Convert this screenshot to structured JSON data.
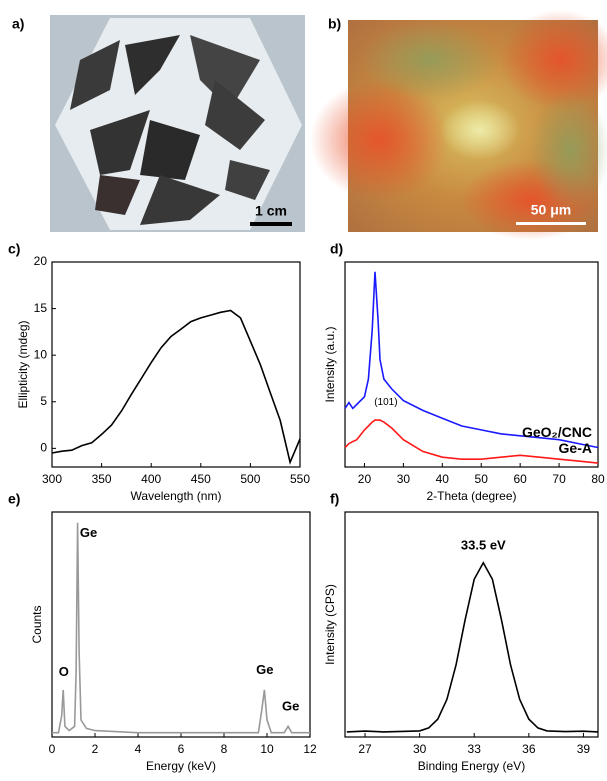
{
  "images": [
    {
      "label": "a)",
      "scale_bar": "1 cm"
    },
    {
      "label": "b)",
      "scale_bar": "50 μm"
    }
  ],
  "chart_data": [
    {
      "type": "line",
      "label": "c)",
      "x_label": "Wavelength (nm)",
      "y_label": "Ellipticity (mdeg)",
      "xlim": [
        300,
        550
      ],
      "xticks": [
        300,
        350,
        400,
        450,
        500,
        550
      ],
      "ylim": [
        -2,
        20
      ],
      "yticks": [
        0,
        5,
        10,
        15,
        20
      ],
      "x": [
        300,
        310,
        320,
        330,
        340,
        350,
        360,
        370,
        380,
        390,
        400,
        410,
        420,
        430,
        440,
        450,
        460,
        470,
        480,
        490,
        500,
        510,
        520,
        530,
        540,
        550
      ],
      "series": [
        {
          "color": "#000000",
          "values": [
            -0.5,
            -0.3,
            -0.2,
            0.3,
            0.6,
            1.5,
            2.5,
            4,
            5.8,
            7.5,
            9.2,
            10.8,
            12,
            12.8,
            13.6,
            14,
            14.3,
            14.6,
            14.8,
            14,
            11.5,
            9,
            6,
            3,
            -1.5,
            1
          ]
        }
      ]
    },
    {
      "type": "line",
      "label": "d)",
      "x_label": "2-Theta (degree)",
      "y_label": "Intensity (a.u.)",
      "xlim": [
        15,
        80
      ],
      "xticks": [
        20,
        30,
        40,
        50,
        60,
        70,
        80
      ],
      "ylim": [
        0,
        105
      ],
      "x": [
        15,
        16,
        17,
        18,
        20,
        21,
        22,
        22.7,
        23.5,
        24,
        25,
        27,
        30,
        35,
        40,
        45,
        50,
        55,
        60,
        65,
        70,
        75,
        80
      ],
      "series": [
        {
          "name": "GeO₂/CNC",
          "color": "#1a1aff",
          "values": [
            30,
            33,
            30,
            32,
            36,
            45,
            70,
            100,
            75,
            55,
            45,
            40,
            34,
            29,
            25,
            21,
            19,
            17,
            16,
            15,
            14,
            12,
            10
          ]
        },
        {
          "name": "Ge-A",
          "color": "#ff1a1a",
          "values": [
            10,
            12,
            13,
            14,
            19,
            21,
            23,
            24,
            24,
            24,
            23,
            20,
            14,
            8,
            5,
            4,
            4,
            5,
            6,
            5,
            4,
            3,
            2
          ]
        }
      ],
      "annotations": [
        {
          "text": "(101)",
          "x": 25.5,
          "y": 33
        }
      ]
    },
    {
      "type": "line",
      "label": "e)",
      "x_label": "Energy (keV)",
      "y_label": "Counts",
      "xlim": [
        0,
        12
      ],
      "xticks": [
        0,
        2,
        4,
        6,
        8,
        10,
        12
      ],
      "ylim": [
        0,
        105
      ],
      "x": [
        0,
        0.3,
        0.45,
        0.52,
        0.6,
        0.8,
        1.05,
        1.12,
        1.19,
        1.26,
        1.35,
        1.6,
        2,
        4,
        6,
        8,
        9.6,
        9.75,
        9.88,
        10.0,
        10.2,
        10.8,
        10.98,
        11.15,
        11.5,
        12
      ],
      "series": [
        {
          "color": "#999999",
          "values": [
            2,
            2,
            10,
            22,
            5,
            3,
            5,
            30,
            100,
            40,
            8,
            4,
            3,
            2,
            2,
            2,
            2,
            12,
            22,
            8,
            2,
            2,
            5,
            2,
            2,
            2
          ]
        }
      ],
      "annotations": [
        {
          "text": "O",
          "x": 0.55,
          "y": 30
        },
        {
          "text": "Ge",
          "x": 1.7,
          "y": 95
        },
        {
          "text": "Ge",
          "x": 9.9,
          "y": 31
        },
        {
          "text": "Ge",
          "x": 11.1,
          "y": 14
        }
      ]
    },
    {
      "type": "line",
      "label": "f)",
      "x_label": "Binding Energy (eV)",
      "y_label": "Intensity (CPS)",
      "xlim": [
        25.9,
        39.8
      ],
      "xticks": [
        27,
        30,
        33,
        36,
        39
      ],
      "ylim": [
        -3,
        130
      ],
      "x": [
        26,
        27,
        28,
        29,
        30,
        30.5,
        31,
        31.5,
        32,
        32.5,
        33,
        33.5,
        34,
        34.5,
        35,
        35.5,
        36,
        36.5,
        37,
        38,
        39,
        39.8
      ],
      "series": [
        {
          "color": "#000000",
          "values": [
            0,
            0.5,
            0,
            0.3,
            0.6,
            2.4,
            7.6,
            19.2,
            39.5,
            66.2,
            90.2,
            100,
            90.2,
            66.2,
            39.5,
            19.2,
            7.6,
            2.4,
            0.6,
            0.2,
            0.4,
            0
          ]
        }
      ],
      "annotations": [
        {
          "text": "33.5 eV",
          "x": 33.5,
          "y": 110
        }
      ]
    }
  ]
}
